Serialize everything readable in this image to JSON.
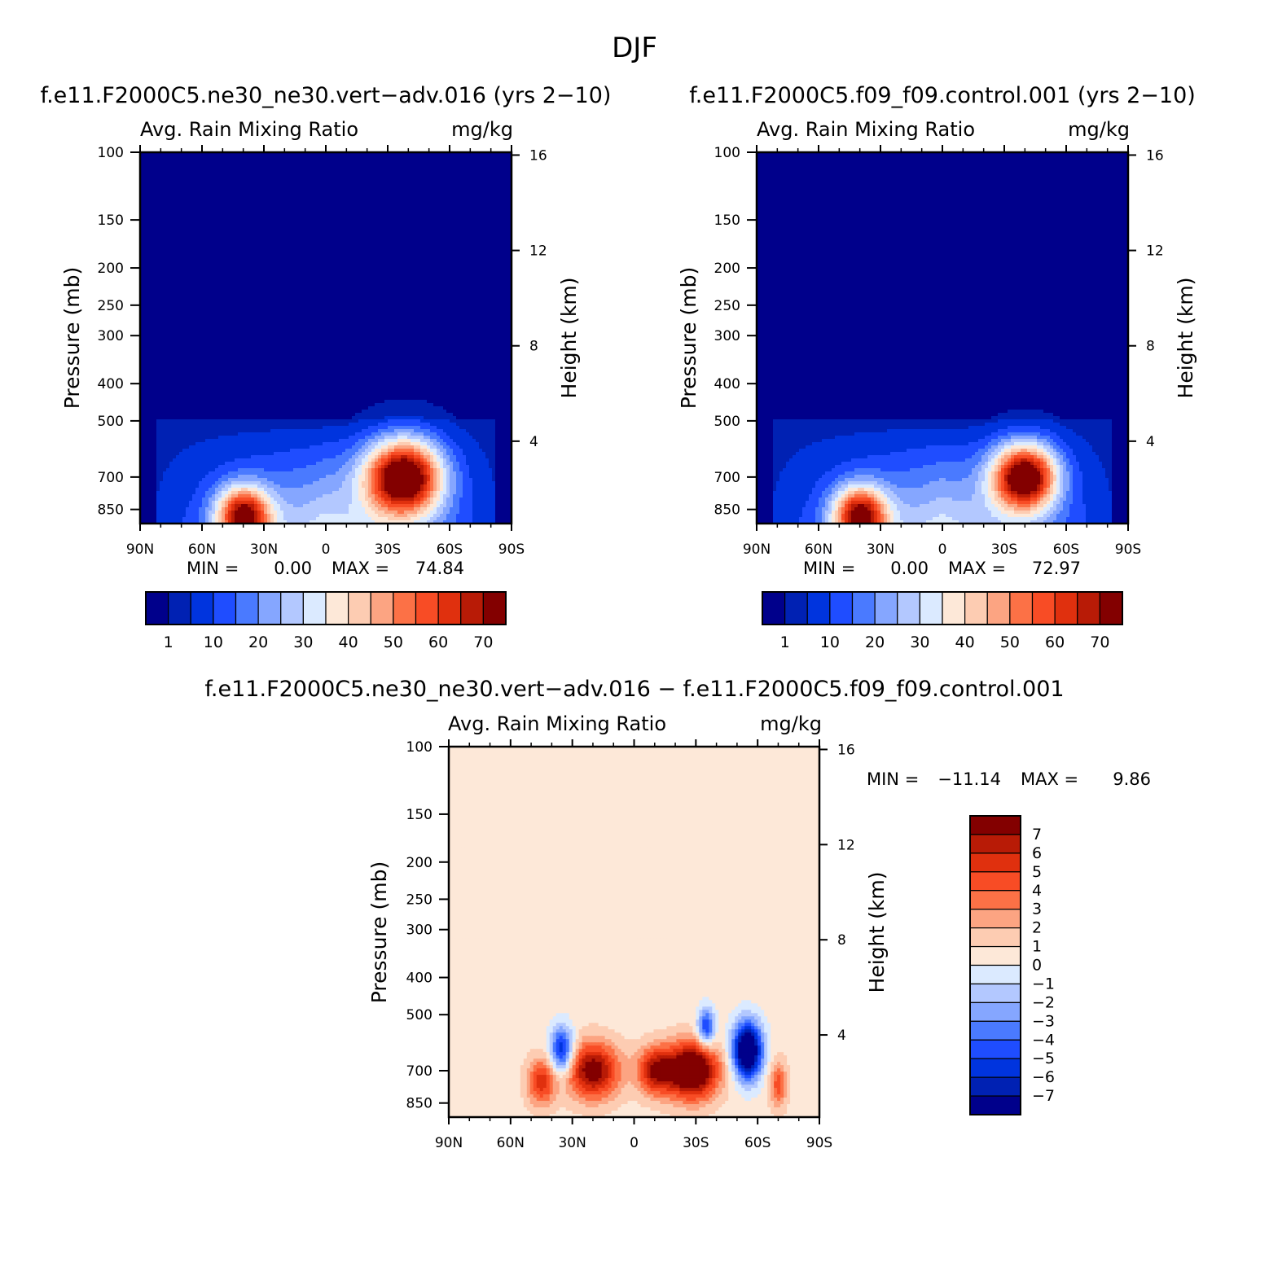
{
  "figure_title": "DJF",
  "chart_data": [
    {
      "type": "contour",
      "title": "f.e11.F2000C5.ne30_ne30.vert−adv.016 (yrs 2−10)",
      "left_subtitle": "Avg. Rain Mixing Ratio",
      "right_subtitle": "mg/kg",
      "ylabel": "Pressure (mb)",
      "y2label": "Height (km)",
      "x_ticks": [
        "90N",
        "60N",
        "30N",
        "0",
        "30S",
        "60S",
        "90S"
      ],
      "x_values": [
        90,
        60,
        30,
        0,
        -30,
        -60,
        -90
      ],
      "y_ticks": [
        "100",
        "150",
        "200",
        "250",
        "300",
        "400",
        "500",
        "700",
        "850"
      ],
      "y_values": [
        100,
        150,
        200,
        250,
        300,
        400,
        500,
        700,
        850
      ],
      "y2_ticks": [
        "16",
        "12",
        "8",
        "4"
      ],
      "y2_values": [
        16,
        12,
        8,
        4
      ],
      "ylim": [
        100,
        925
      ],
      "log_y": true,
      "stats": {
        "min_label": "MIN =",
        "min": "0.00",
        "max_label": "MAX =",
        "max": "74.84"
      },
      "field": {
        "background": 0,
        "cores": [
          {
            "lat": -38,
            "p": 700,
            "peak": 74.84,
            "lat_width": 13,
            "p_width": 0.16
          },
          {
            "lat": 40,
            "p": 880,
            "peak": 60,
            "lat_width": 9,
            "p_width": 0.12
          }
        ],
        "envelope_top_p": 500
      },
      "colorbar": {
        "orientation": "horizontal",
        "colors": [
          "#00008b",
          "#0021b3",
          "#0034de",
          "#1f4dff",
          "#4a7aff",
          "#85a6ff",
          "#b3c8ff",
          "#dbeaff",
          "#fde8d8",
          "#fdccb2",
          "#fca482",
          "#fc7146",
          "#f84c25",
          "#e0300e",
          "#b81b06",
          "#830000"
        ],
        "labels": [
          "1",
          "10",
          "20",
          "30",
          "40",
          "50",
          "60",
          "70"
        ]
      }
    },
    {
      "type": "contour",
      "title": "f.e11.F2000C5.f09_f09.control.001 (yrs 2−10)",
      "left_subtitle": "Avg. Rain Mixing Ratio",
      "right_subtitle": "mg/kg",
      "ylabel": "Pressure (mb)",
      "y2label": "Height (km)",
      "x_ticks": [
        "90N",
        "60N",
        "30N",
        "0",
        "30S",
        "60S",
        "90S"
      ],
      "x_values": [
        90,
        60,
        30,
        0,
        -30,
        -60,
        -90
      ],
      "y_ticks": [
        "100",
        "150",
        "200",
        "250",
        "300",
        "400",
        "500",
        "700",
        "850"
      ],
      "y_values": [
        100,
        150,
        200,
        250,
        300,
        400,
        500,
        700,
        850
      ],
      "y2_ticks": [
        "16",
        "12",
        "8",
        "4"
      ],
      "y2_values": [
        16,
        12,
        8,
        4
      ],
      "ylim": [
        100,
        925
      ],
      "log_y": true,
      "stats": {
        "min_label": "MIN =",
        "min": "0.00",
        "max_label": "MAX =",
        "max": "72.97"
      },
      "field": {
        "background": 0,
        "cores": [
          {
            "lat": -40,
            "p": 700,
            "peak": 72.97,
            "lat_width": 11,
            "p_width": 0.14
          },
          {
            "lat": 40,
            "p": 880,
            "peak": 60,
            "lat_width": 9,
            "p_width": 0.12
          }
        ],
        "envelope_top_p": 500
      },
      "colorbar": {
        "orientation": "horizontal",
        "colors": [
          "#00008b",
          "#0021b3",
          "#0034de",
          "#1f4dff",
          "#4a7aff",
          "#85a6ff",
          "#b3c8ff",
          "#dbeaff",
          "#fde8d8",
          "#fdccb2",
          "#fca482",
          "#fc7146",
          "#f84c25",
          "#e0300e",
          "#b81b06",
          "#830000"
        ],
        "labels": [
          "1",
          "10",
          "20",
          "30",
          "40",
          "50",
          "60",
          "70"
        ]
      }
    },
    {
      "type": "contour",
      "title": "f.e11.F2000C5.ne30_ne30.vert−adv.016 − f.e11.F2000C5.f09_f09.control.001",
      "left_subtitle": "Avg. Rain Mixing Ratio",
      "right_subtitle": "mg/kg",
      "ylabel": "Pressure (mb)",
      "y2label": "Height (km)",
      "x_ticks": [
        "90N",
        "60N",
        "30N",
        "0",
        "30S",
        "60S",
        "90S"
      ],
      "x_values": [
        90,
        60,
        30,
        0,
        -30,
        -60,
        -90
      ],
      "y_ticks": [
        "100",
        "150",
        "200",
        "250",
        "300",
        "400",
        "500",
        "700",
        "850"
      ],
      "y_values": [
        100,
        150,
        200,
        250,
        300,
        400,
        500,
        700,
        850
      ],
      "y2_ticks": [
        "16",
        "12",
        "8",
        "4"
      ],
      "y2_values": [
        16,
        12,
        8,
        4
      ],
      "ylim": [
        100,
        925
      ],
      "log_y": true,
      "stats": {
        "min_label": "MIN =",
        "min": "−11.14",
        "max_label": "MAX =",
        "max": "9.86"
      },
      "field": {
        "background": 0.5,
        "cores": [
          {
            "lat": -28,
            "p": 700,
            "peak": 9.86,
            "lat_width": 9,
            "p_width": 0.12
          },
          {
            "lat": 20,
            "p": 700,
            "peak": 7.5,
            "lat_width": 9,
            "p_width": 0.12
          },
          {
            "lat": -10,
            "p": 700,
            "peak": 6.0,
            "lat_width": 6,
            "p_width": 0.1
          },
          {
            "lat": 45,
            "p": 750,
            "peak": 5.0,
            "lat_width": 5,
            "p_width": 0.1
          },
          {
            "lat": 35,
            "p": 620,
            "peak": -7.0,
            "lat_width": 4,
            "p_width": 0.1
          },
          {
            "lat": -55,
            "p": 620,
            "peak": -11.14,
            "lat_width": 5,
            "p_width": 0.12
          },
          {
            "lat": -35,
            "p": 540,
            "peak": -6.0,
            "lat_width": 3,
            "p_width": 0.08
          },
          {
            "lat": -70,
            "p": 760,
            "peak": 4.0,
            "lat_width": 3,
            "p_width": 0.1
          }
        ],
        "envelope_top_p": 400
      },
      "colorbar": {
        "orientation": "vertical",
        "colors": [
          "#00008b",
          "#0021b3",
          "#0034de",
          "#1f4dff",
          "#4a7aff",
          "#85a6ff",
          "#b3c8ff",
          "#dbeaff",
          "#fde8d8",
          "#fdccb2",
          "#fca482",
          "#fc7146",
          "#f84c25",
          "#e0300e",
          "#b81b06",
          "#830000"
        ],
        "labels": [
          "7",
          "6",
          "5",
          "4",
          "3",
          "2",
          "1",
          "0",
          "−1",
          "−2",
          "−3",
          "−4",
          "−5",
          "−6",
          "−7"
        ]
      }
    }
  ]
}
